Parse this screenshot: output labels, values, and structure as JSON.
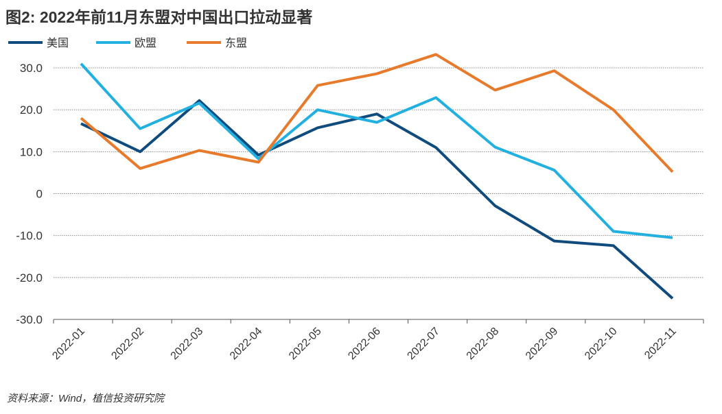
{
  "chart_data": {
    "type": "line",
    "title": "图2: 2022年前11月东盟对中国出口拉动显著",
    "source": "资料来源：Wind，植信投资研究院",
    "categories": [
      "2022-01",
      "2022-02",
      "2022-03",
      "2022-04",
      "2022-05",
      "2022-06",
      "2022-07",
      "2022-08",
      "2022-09",
      "2022-10",
      "2022-11"
    ],
    "ylim": [
      -30,
      30
    ],
    "yticks": [
      30,
      20,
      10,
      0,
      -10,
      -20,
      -30
    ],
    "ytick_labels": [
      "30.0",
      "20.0",
      "10.0",
      "0",
      "-10.0",
      "-20.0",
      "-30.0"
    ],
    "grid": true,
    "legend": "top-left",
    "series": [
      {
        "name": "美国",
        "color": "#0f4c7d",
        "values": [
          16.7,
          10.0,
          22.2,
          9.2,
          15.7,
          19.0,
          11.0,
          -2.9,
          -11.3,
          -12.4,
          -25.0
        ]
      },
      {
        "name": "欧盟",
        "color": "#22b0e0",
        "values": [
          31.0,
          15.5,
          21.6,
          8.3,
          20.0,
          17.0,
          22.9,
          11.1,
          5.6,
          -9.0,
          -10.5
        ]
      },
      {
        "name": "东盟",
        "color": "#e87a2c",
        "values": [
          18.0,
          6.0,
          10.3,
          7.5,
          25.8,
          28.6,
          33.2,
          24.7,
          29.3,
          20.0,
          5.2
        ]
      }
    ]
  }
}
